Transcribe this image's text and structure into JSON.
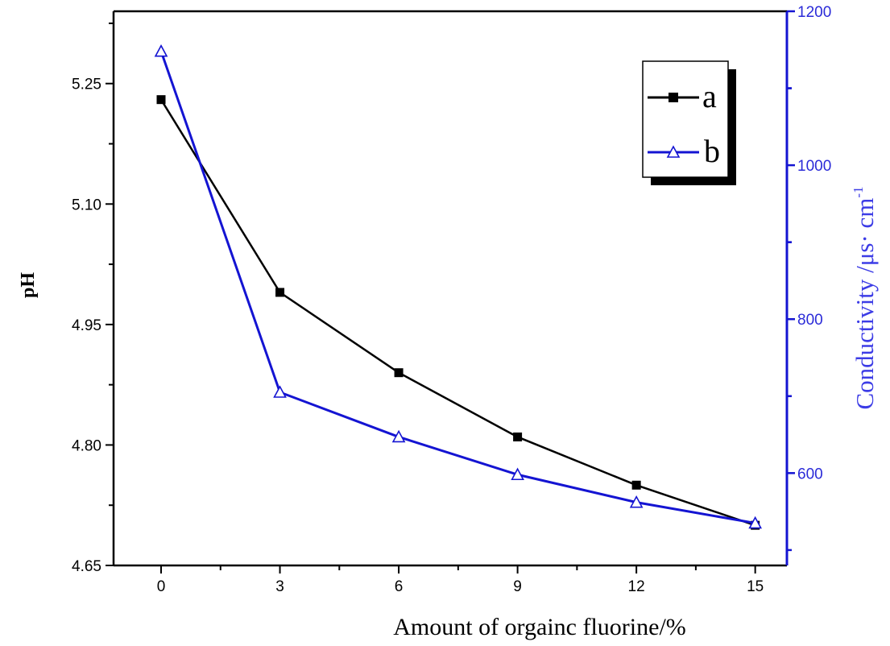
{
  "chart_data": {
    "type": "line",
    "xlabel": "Amount of orgainc fluorine/%",
    "ylabel_left": "pH",
    "ylabel_right": "Conductivity /μs· cm",
    "ylabel_right_superscript": "-1",
    "x": [
      0,
      3,
      6,
      9,
      12,
      15
    ],
    "x_ticks": [
      0,
      3,
      6,
      9,
      12,
      15
    ],
    "xlim": [
      -1.2,
      15.8
    ],
    "ylim_left": [
      4.65,
      5.34
    ],
    "ylim_right": [
      480,
      1200
    ],
    "y_left_ticks": [
      "4.65",
      "4.80",
      "4.95",
      "5.10",
      "5.25"
    ],
    "y_right_ticks": [
      "600",
      "800",
      "1000",
      "1200"
    ],
    "series": [
      {
        "name": "a",
        "axis": "left",
        "color": "#000000",
        "marker": "filled-square",
        "values": [
          5.23,
          4.99,
          4.89,
          4.81,
          4.75,
          4.7
        ]
      },
      {
        "name": "b",
        "axis": "right",
        "color": "#1414d2",
        "marker": "open-triangle",
        "values": [
          1148,
          705,
          647,
          598,
          562,
          535
        ]
      }
    ],
    "legend": {
      "position": "top-right",
      "entries": [
        "a",
        "b"
      ]
    },
    "right_axis_color": "#1414d2"
  }
}
